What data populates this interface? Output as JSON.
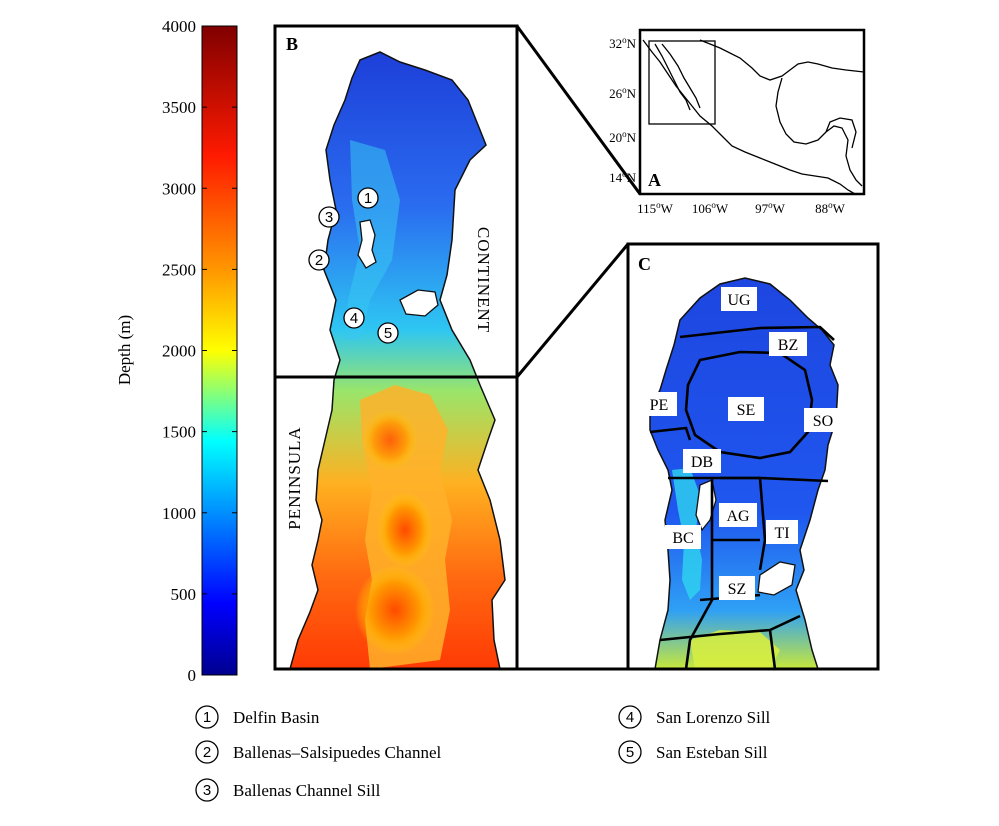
{
  "colorbar": {
    "title": "Depth (m)",
    "ticks": [
      "4000",
      "3500",
      "3000",
      "2500",
      "2000",
      "1500",
      "1000",
      "500",
      "0"
    ],
    "range": [
      0,
      4000
    ]
  },
  "panel_b": {
    "label": "B",
    "continent_label": "CONTINENT",
    "peninsula_label": "PENINSULA",
    "markers": [
      "1",
      "2",
      "3",
      "4",
      "5"
    ]
  },
  "panel_a": {
    "label": "A",
    "lat_ticks": [
      "32",
      "26",
      "20",
      "14"
    ],
    "lat_suffix": "N",
    "lon_ticks": [
      "115",
      "106",
      "97",
      "88"
    ],
    "lon_suffix": "W",
    "degree_symbol": "o"
  },
  "panel_c": {
    "label": "C",
    "regions": {
      "ug": "UG",
      "bz": "BZ",
      "pe": "PE",
      "se": "SE",
      "so": "SO",
      "db": "DB",
      "ag": "AG",
      "bc": "BC",
      "ti": "TI",
      "sz": "SZ"
    }
  },
  "legend": [
    {
      "num": "1",
      "text": "Delfin Basin"
    },
    {
      "num": "2",
      "text": "Ballenas–Salsipuedes Channel"
    },
    {
      "num": "3",
      "text": "Ballenas Channel Sill"
    },
    {
      "num": "4",
      "text": "San Lorenzo Sill"
    },
    {
      "num": "5",
      "text": "San Esteban Sill"
    }
  ],
  "colors": {
    "deep_red": "#7f0000",
    "red": "#ff2a00",
    "orange": "#ff9a00",
    "yellow": "#f6f000",
    "cyan": "#2be0ff",
    "blue": "#1e5ff2",
    "navy": "#00008f"
  }
}
